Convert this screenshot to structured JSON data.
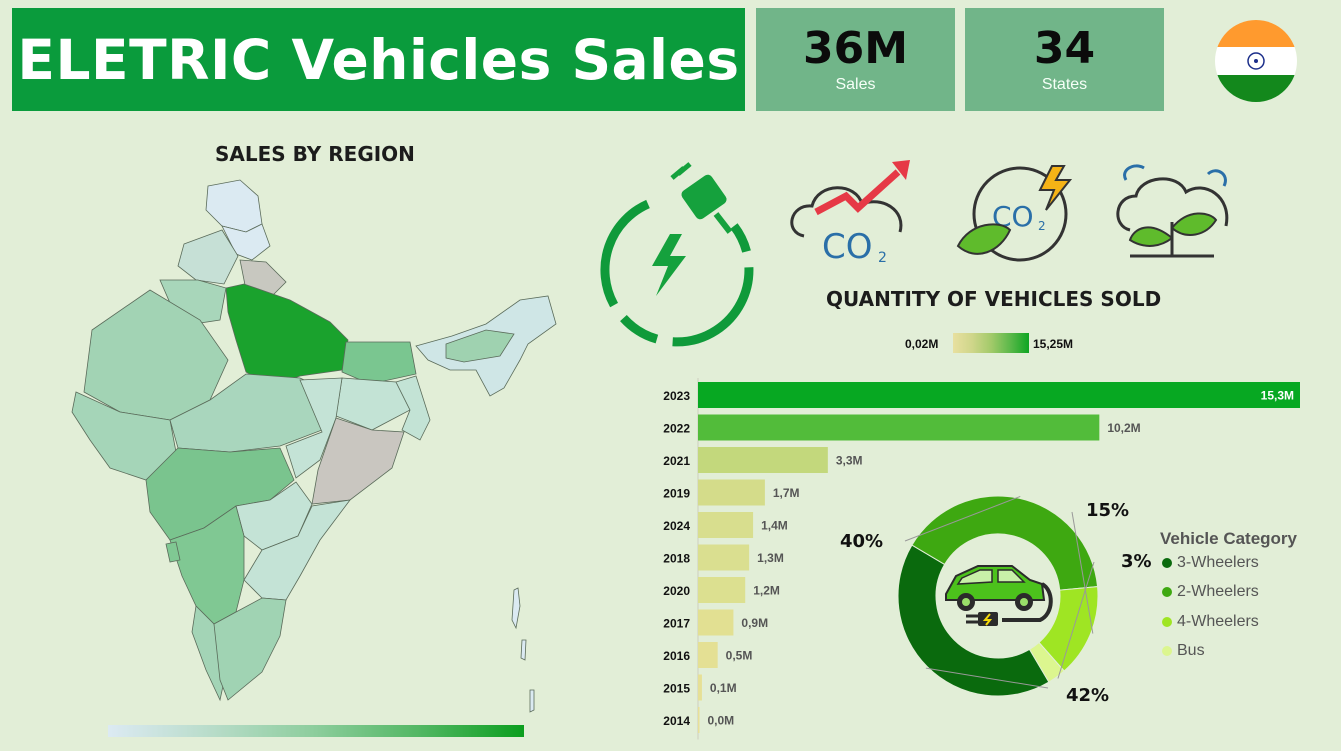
{
  "header": {
    "title": "ELETRIC Vehicles Sales",
    "kpis": [
      {
        "value": "36M",
        "label": "Sales"
      },
      {
        "value": "34",
        "label": "States"
      }
    ]
  },
  "map": {
    "title": "SALES BY REGION"
  },
  "bars": {
    "title": "QUANTITY OF VEHICLES SOLD",
    "legend_min": "0,02M",
    "legend_max": "15,25M"
  },
  "colors": {
    "title_bg": "#0a9b3c",
    "kpi_bg": "#71b589",
    "bg": "#e2eed7",
    "top_bar": "#07a822"
  },
  "icons": [
    "power-plug-icon",
    "co2-rising-icon",
    "co2-leaf-icon",
    "clean-air-plant-icon",
    "india-flag-icon",
    "electric-car-icon"
  ],
  "chart_data": [
    {
      "type": "bar",
      "orientation": "horizontal",
      "title": "QUANTITY OF VEHICLES SOLD",
      "categories": [
        "2023",
        "2022",
        "2021",
        "2019",
        "2024",
        "2018",
        "2020",
        "2017",
        "2016",
        "2015",
        "2014"
      ],
      "values": [
        15.3,
        10.2,
        3.3,
        1.7,
        1.4,
        1.3,
        1.2,
        0.9,
        0.5,
        0.1,
        0.0
      ],
      "labels": [
        "15,3M",
        "10,2M",
        "3,3M",
        "1,7M",
        "1,4M",
        "1,3M",
        "1,2M",
        "0,9M",
        "0,5M",
        "0,1M",
        "0,0M"
      ],
      "xlim": [
        0,
        15.3
      ]
    },
    {
      "type": "pie",
      "variant": "donut",
      "legend_title": "Vehicle Category",
      "legend_position": "right",
      "categories": [
        "3-Wheelers",
        "2-Wheelers",
        "4-Wheelers",
        "Bus"
      ],
      "values": [
        42,
        40,
        15,
        3
      ],
      "labels": [
        "42%",
        "40%",
        "15%",
        "3%"
      ],
      "colors": [
        "#0a6a0d",
        "#3ea811",
        "#9fe523",
        "#dcf68f"
      ]
    }
  ]
}
